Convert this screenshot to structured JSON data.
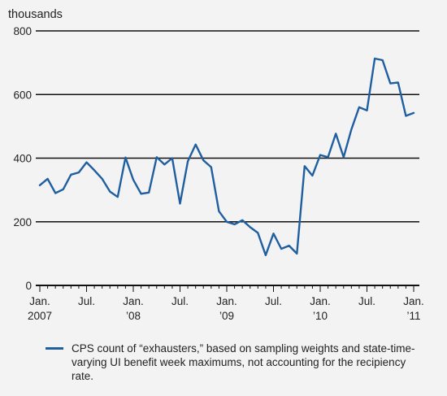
{
  "chart_data": {
    "type": "line",
    "unit_label": "thousands",
    "ylim": [
      0,
      800
    ],
    "yticks": [
      0,
      200,
      400,
      600,
      800
    ],
    "grid": "horizontal",
    "x_tick_labels": [
      {
        "month_index": 0,
        "line1": "Jan.",
        "line2": "2007"
      },
      {
        "month_index": 6,
        "line1": "Jul.",
        "line2": ""
      },
      {
        "month_index": 12,
        "line1": "Jan.",
        "line2": "’08"
      },
      {
        "month_index": 18,
        "line1": "Jul.",
        "line2": ""
      },
      {
        "month_index": 24,
        "line1": "Jan.",
        "line2": "’09"
      },
      {
        "month_index": 30,
        "line1": "Jul.",
        "line2": ""
      },
      {
        "month_index": 36,
        "line1": "Jan.",
        "line2": "’10"
      },
      {
        "month_index": 42,
        "line1": "Jul.",
        "line2": ""
      },
      {
        "month_index": 48,
        "line1": "Jan.",
        "line2": "’11"
      }
    ],
    "series": [
      {
        "name": "CPS count of “exhausters,” based on sampling weights and state-time-varying UI benefit week maximums, not accounting for the recipiency rate.",
        "color": "#1f5fa0",
        "x": [
          "2007-01",
          "2007-02",
          "2007-03",
          "2007-04",
          "2007-05",
          "2007-06",
          "2007-07",
          "2007-08",
          "2007-09",
          "2007-10",
          "2007-11",
          "2007-12",
          "2008-01",
          "2008-02",
          "2008-03",
          "2008-04",
          "2008-05",
          "2008-06",
          "2008-07",
          "2008-08",
          "2008-09",
          "2008-10",
          "2008-11",
          "2008-12",
          "2009-01",
          "2009-02",
          "2009-03",
          "2009-04",
          "2009-05",
          "2009-06",
          "2009-07",
          "2009-08",
          "2009-09",
          "2009-10",
          "2009-11",
          "2009-12",
          "2010-01",
          "2010-02",
          "2010-03",
          "2010-04",
          "2010-05",
          "2010-06",
          "2010-07",
          "2010-08",
          "2010-09",
          "2010-10",
          "2010-11",
          "2010-12",
          "2011-01"
        ],
        "values": [
          315,
          335,
          290,
          302,
          348,
          355,
          387,
          362,
          335,
          295,
          278,
          402,
          332,
          288,
          292,
          403,
          380,
          400,
          257,
          390,
          443,
          393,
          372,
          233,
          200,
          192,
          205,
          183,
          165,
          95,
          163,
          115,
          125,
          100,
          375,
          345,
          410,
          403,
          477,
          403,
          490,
          560,
          550,
          713,
          708,
          635,
          638,
          533,
          542
        ]
      }
    ]
  }
}
